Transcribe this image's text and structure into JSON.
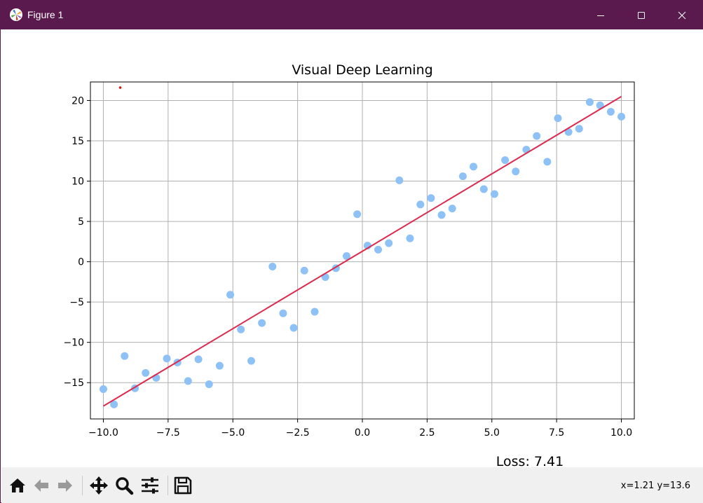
{
  "window": {
    "title": "Figure 1",
    "app_icon": "matplotlib-icon",
    "controls": [
      "minimize-icon",
      "maximize-icon",
      "close-icon"
    ],
    "titlebar_color": "#5b1a4e"
  },
  "toolbar": {
    "tools": [
      "home-icon",
      "back-icon",
      "forward-icon",
      "pan-icon",
      "zoom-icon",
      "configure-subplots-icon",
      "save-icon"
    ],
    "coordinates": "x=1.21 y=13.6"
  },
  "loss_text": "Loss: 7.41",
  "chart_data": {
    "type": "scatter",
    "title": "Visual Deep Learning",
    "xlabel": "",
    "ylabel": "",
    "xlim": [
      -10.5,
      10.5
    ],
    "ylim": [
      -19.5,
      22.3
    ],
    "xticks": [
      -10.0,
      -7.5,
      -5.0,
      -2.5,
      0.0,
      2.5,
      5.0,
      7.5,
      10.0
    ],
    "xtick_labels": [
      "−10.0",
      "−7.5",
      "−5.0",
      "−2.5",
      "0.0",
      "2.5",
      "5.0",
      "7.5",
      "10.0"
    ],
    "yticks": [
      -15,
      -10,
      -5,
      0,
      5,
      10,
      15,
      20
    ],
    "ytick_labels": [
      "−15",
      "−10",
      "−5",
      "0",
      "5",
      "10",
      "15",
      "20"
    ],
    "grid": true,
    "series": [
      {
        "kind": "scatter",
        "color": "#8ec1f5",
        "x": [
          -10.0,
          -9.59,
          -9.18,
          -8.78,
          -8.37,
          -7.96,
          -7.55,
          -7.14,
          -6.73,
          -6.33,
          -5.92,
          -5.51,
          -5.1,
          -4.69,
          -4.29,
          -3.88,
          -3.47,
          -3.06,
          -2.65,
          -2.24,
          -1.84,
          -1.43,
          -1.02,
          -0.61,
          -0.2,
          0.2,
          0.61,
          1.02,
          1.43,
          1.84,
          2.24,
          2.65,
          3.06,
          3.47,
          3.88,
          4.29,
          4.69,
          5.1,
          5.51,
          5.92,
          6.33,
          6.73,
          7.14,
          7.55,
          7.96,
          8.37,
          8.78,
          9.18,
          9.59,
          10.0
        ],
        "y": [
          -15.8,
          -17.7,
          -11.7,
          -15.7,
          -13.8,
          -14.4,
          -12.0,
          -12.5,
          -14.8,
          -12.1,
          -15.2,
          -12.9,
          -4.1,
          -8.4,
          -12.3,
          -7.6,
          -0.6,
          -6.4,
          -8.2,
          -1.1,
          -6.2,
          -1.9,
          -0.8,
          0.7,
          5.9,
          2.0,
          1.5,
          2.3,
          10.1,
          2.9,
          7.1,
          7.9,
          5.8,
          6.6,
          10.6,
          11.8,
          9.0,
          8.4,
          12.6,
          11.2,
          13.9,
          15.6,
          12.4,
          17.8,
          16.1,
          16.5,
          19.8,
          19.4,
          18.6,
          18.0
        ]
      },
      {
        "kind": "line",
        "color": "#dc2a4f",
        "x": [
          -10.0,
          10.0
        ],
        "y": [
          -17.9,
          20.5
        ]
      },
      {
        "kind": "scatter",
        "color": "#e01010",
        "x": [
          -9.35
        ],
        "y": [
          21.6
        ]
      }
    ]
  }
}
